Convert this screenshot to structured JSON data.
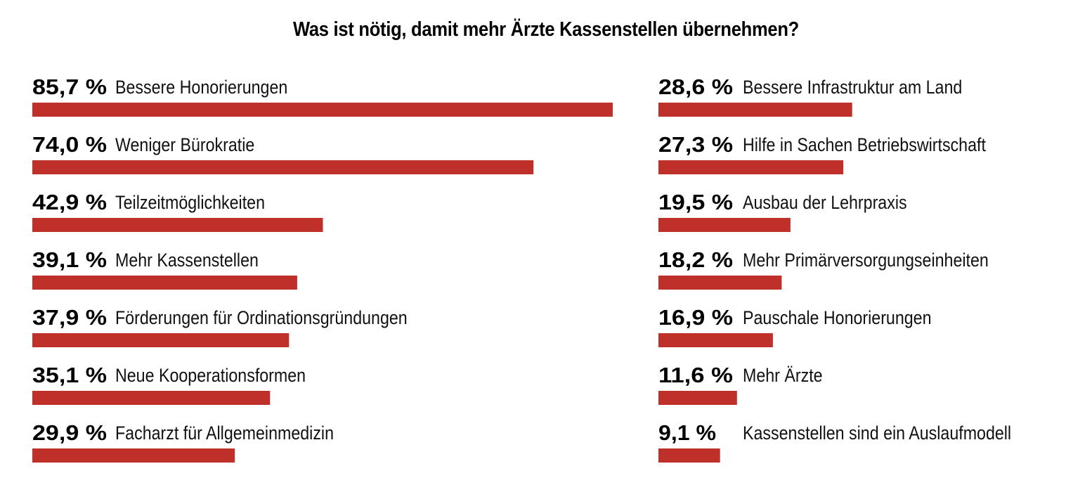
{
  "chart_data": {
    "type": "bar",
    "orientation": "horizontal",
    "title": "Was ist nötig, damit mehr Ärzte Kassenstellen übernehmen?",
    "bar_color": "#c0302b",
    "xlim": [
      0,
      100
    ],
    "items": [
      {
        "pct_label": "85,7 %",
        "value": 85.7,
        "label": "Bessere Honorierungen"
      },
      {
        "pct_label": "74,0 %",
        "value": 74.0,
        "label": "Weniger Bürokratie"
      },
      {
        "pct_label": "42,9 %",
        "value": 42.9,
        "label": "Teilzeitmöglichkeiten"
      },
      {
        "pct_label": "39,1 %",
        "value": 39.1,
        "label": "Mehr Kassenstellen"
      },
      {
        "pct_label": "37,9 %",
        "value": 37.9,
        "label": "Förderungen für Ordinationsgründungen"
      },
      {
        "pct_label": "35,1 %",
        "value": 35.1,
        "label": "Neue Kooperationsformen"
      },
      {
        "pct_label": "29,9 %",
        "value": 29.9,
        "label": "Facharzt für Allgemeinmedizin"
      },
      {
        "pct_label": "28,6 %",
        "value": 28.6,
        "label": "Bessere Infrastruktur am Land"
      },
      {
        "pct_label": "27,3 %",
        "value": 27.3,
        "label": "Hilfe in Sachen Betriebswirtschaft"
      },
      {
        "pct_label": "19,5 %",
        "value": 19.5,
        "label": "Ausbau der Lehrpraxis"
      },
      {
        "pct_label": "18,2 %",
        "value": 18.2,
        "label": "Mehr Primärversorgungseinheiten"
      },
      {
        "pct_label": "16,9 %",
        "value": 16.9,
        "label": "Pauschale Honorierungen"
      },
      {
        "pct_label": "11,6 %",
        "value": 11.6,
        "label": "Mehr Ärzte"
      },
      {
        "pct_label": "9,1 %",
        "value": 9.1,
        "label": "Kassenstellen sind ein Auslaufmodell"
      }
    ]
  }
}
